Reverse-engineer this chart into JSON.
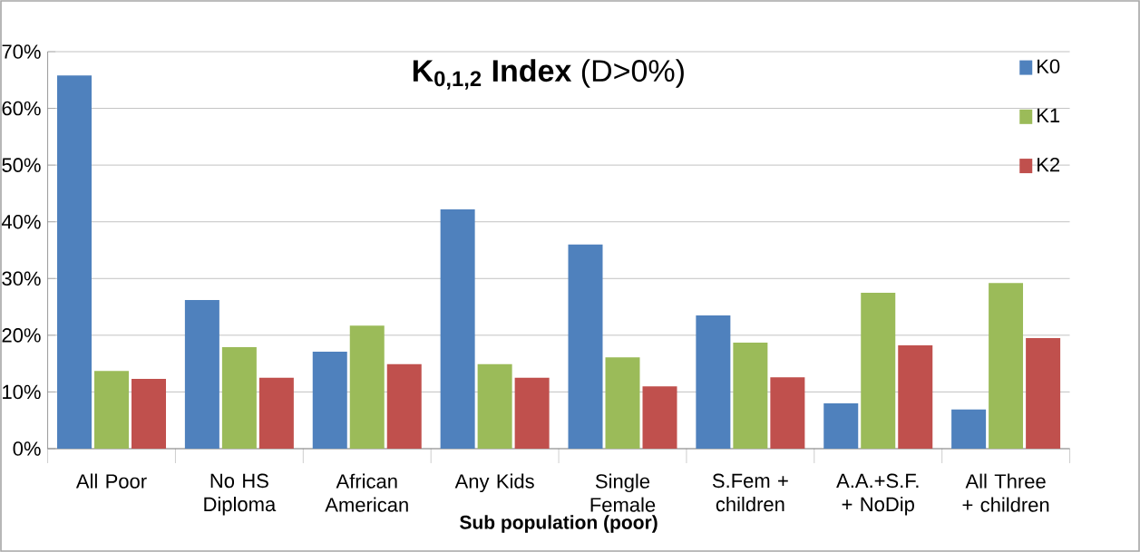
{
  "chart_data": {
    "type": "bar",
    "title": "**K$_{0,1,2}$ Index** (D>0%)",
    "xlabel": "Sub population (poor)",
    "categories": [
      "All Poor",
      "No HS Diploma",
      "African American",
      "Any Kids",
      "Single Female",
      "S.Fem + children",
      "A.A.+S.F. + NoDip",
      "All Three + children"
    ],
    "series": [
      {
        "name": "K0",
        "color": "#4f81bd",
        "values": [
          65.8,
          26.2,
          17.1,
          42.2,
          36.0,
          23.5,
          8.0,
          6.9
        ]
      },
      {
        "name": "K1",
        "color": "#9bbb59",
        "values": [
          13.7,
          17.9,
          21.7,
          14.9,
          16.1,
          18.7,
          27.5,
          29.2
        ]
      },
      {
        "name": "K2",
        "color": "#c0504d",
        "values": [
          12.3,
          12.5,
          14.9,
          12.5,
          11.0,
          12.6,
          18.2,
          19.5
        ]
      }
    ],
    "ylim": [
      0,
      70
    ],
    "yticks": [
      {
        "value": 0,
        "label": "0%"
      },
      {
        "value": 10,
        "label": "10%"
      },
      {
        "value": 20,
        "label": "20%"
      },
      {
        "value": 30,
        "label": "30%"
      },
      {
        "value": 40,
        "label": "40%"
      },
      {
        "value": 50,
        "label": "50%"
      },
      {
        "value": 60,
        "label": "60%"
      },
      {
        "value": 70,
        "label": "70%"
      }
    ],
    "grid": "y",
    "legend": "top right"
  }
}
